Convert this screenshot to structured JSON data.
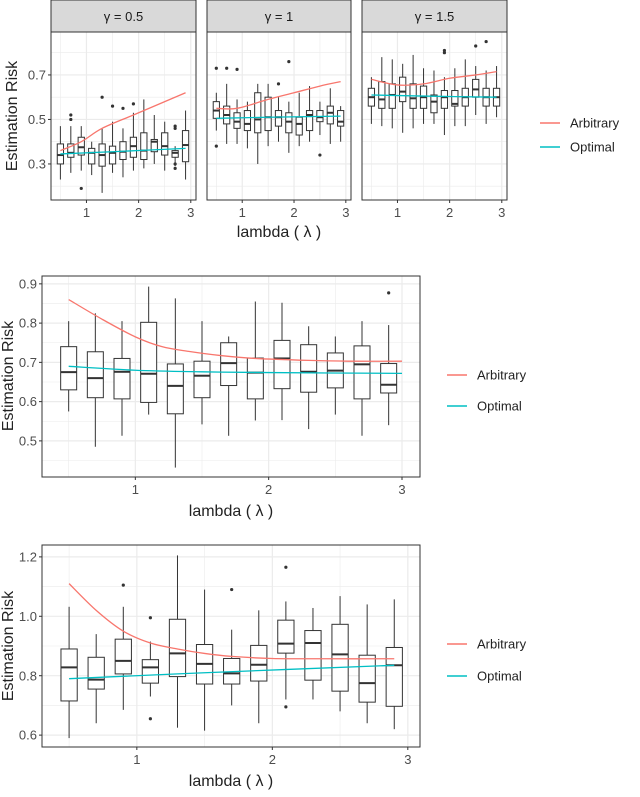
{
  "colors": {
    "arbitrary": "#F8766D",
    "optimal": "#00BFC4",
    "box": "#333333",
    "grid": "#EBEBEB",
    "strip": "#D9D9D9"
  },
  "chart_data": [
    {
      "type": "box",
      "xlabel": "lambda ( λ )",
      "ylabel": "Estimation Risk",
      "grid": true,
      "legend": {
        "placement": "right",
        "entries": [
          "Arbitrary",
          "Optimal"
        ]
      },
      "xlim": [
        0.32,
        3.1
      ],
      "ylim": [
        0.138,
        0.893
      ],
      "xticks": [
        "1",
        "2",
        "3"
      ],
      "yticks": [
        "0.3",
        "0.5",
        "0.7"
      ],
      "facets": [
        {
          "label": "γ = 0.5",
          "x": [
            0.5,
            0.7,
            0.9,
            1.1,
            1.3,
            1.5,
            1.7,
            1.9,
            2.1,
            2.3,
            2.5,
            2.7,
            2.9
          ],
          "boxes": [
            [
              0.23,
              0.3,
              0.34,
              0.39,
              0.47
            ],
            [
              0.26,
              0.33,
              0.35,
              0.39,
              0.47
            ],
            [
              0.27,
              0.34,
              0.375,
              0.42,
              0.47
            ],
            [
              0.25,
              0.3,
              0.35,
              0.37,
              0.4
            ],
            [
              0.17,
              0.29,
              0.34,
              0.39,
              0.46
            ],
            [
              0.26,
              0.3,
              0.35,
              0.38,
              0.49
            ],
            [
              0.24,
              0.32,
              0.355,
              0.4,
              0.46
            ],
            [
              0.27,
              0.33,
              0.38,
              0.42,
              0.53
            ],
            [
              0.28,
              0.32,
              0.36,
              0.44,
              0.59
            ],
            [
              0.3,
              0.355,
              0.4,
              0.41,
              0.52
            ],
            [
              0.27,
              0.34,
              0.38,
              0.44,
              0.49
            ],
            [
              0.29,
              0.33,
              0.35,
              0.36,
              0.38
            ],
            [
              0.23,
              0.31,
              0.385,
              0.45,
              0.54
            ]
          ],
          "outliers": [
            [],
            [
              0.5,
              0.52
            ],
            [
              0.19
            ],
            [],
            [
              0.6
            ],
            [
              0.56
            ],
            [
              0.55
            ],
            [
              0.57
            ],
            [],
            [],
            [],
            [
              0.46,
              0.47,
              0.28,
              0.3
            ],
            []
          ],
          "series": [
            {
              "name": "Arbitrary",
              "x": [
                0.5,
                0.9,
                1.3,
                1.9,
                2.4,
                2.9
              ],
              "y": [
                0.36,
                0.4,
                0.46,
                0.52,
                0.57,
                0.62
              ]
            },
            {
              "name": "Optimal",
              "x": [
                0.5,
                1.5,
                2.9
              ],
              "y": [
                0.345,
                0.355,
                0.37
              ]
            }
          ]
        },
        {
          "label": "γ = 1",
          "x": [
            0.5,
            0.7,
            0.9,
            1.1,
            1.3,
            1.5,
            1.7,
            1.9,
            2.1,
            2.3,
            2.5,
            2.7,
            2.9
          ],
          "boxes": [
            [
              0.45,
              0.505,
              0.54,
              0.58,
              0.62
            ],
            [
              0.39,
              0.48,
              0.52,
              0.56,
              0.66
            ],
            [
              0.39,
              0.46,
              0.49,
              0.53,
              0.59
            ],
            [
              0.37,
              0.45,
              0.48,
              0.54,
              0.58
            ],
            [
              0.3,
              0.44,
              0.5,
              0.62,
              0.66
            ],
            [
              0.38,
              0.45,
              0.51,
              0.6,
              0.66
            ],
            [
              0.4,
              0.47,
              0.51,
              0.54,
              0.6
            ],
            [
              0.35,
              0.44,
              0.49,
              0.53,
              0.58
            ],
            [
              0.38,
              0.43,
              0.48,
              0.51,
              0.62
            ],
            [
              0.4,
              0.45,
              0.52,
              0.54,
              0.65
            ],
            [
              0.43,
              0.49,
              0.51,
              0.54,
              0.58
            ],
            [
              0.39,
              0.48,
              0.53,
              0.56,
              0.64
            ],
            [
              0.4,
              0.47,
              0.49,
              0.54,
              0.56
            ]
          ],
          "outliers": [
            [
              0.73,
              0.38
            ],
            [
              0.73
            ],
            [
              0.725
            ],
            [],
            [],
            [],
            [
              0.66
            ],
            [
              0.76
            ],
            [],
            [],
            [
              0.34
            ],
            [],
            []
          ],
          "series": [
            {
              "name": "Arbitrary",
              "x": [
                0.5,
                0.9,
                1.5,
                2.0,
                2.5,
                2.9
              ],
              "y": [
                0.55,
                0.55,
                0.59,
                0.62,
                0.65,
                0.67
              ]
            },
            {
              "name": "Optimal",
              "x": [
                0.5,
                1.5,
                2.9
              ],
              "y": [
                0.505,
                0.51,
                0.515
              ]
            }
          ]
        },
        {
          "label": "γ = 1.5",
          "x": [
            0.5,
            0.7,
            0.9,
            1.1,
            1.3,
            1.5,
            1.7,
            1.9,
            2.1,
            2.3,
            2.5,
            2.7,
            2.9
          ],
          "boxes": [
            [
              0.48,
              0.56,
              0.6,
              0.64,
              0.69
            ],
            [
              0.47,
              0.55,
              0.59,
              0.67,
              0.78
            ],
            [
              0.46,
              0.55,
              0.61,
              0.66,
              0.77
            ],
            [
              0.44,
              0.58,
              0.625,
              0.69,
              0.75
            ],
            [
              0.46,
              0.55,
              0.595,
              0.66,
              0.79
            ],
            [
              0.48,
              0.55,
              0.6,
              0.65,
              0.73
            ],
            [
              0.48,
              0.53,
              0.58,
              0.61,
              0.72
            ],
            [
              0.43,
              0.55,
              0.6,
              0.63,
              0.69
            ],
            [
              0.47,
              0.56,
              0.57,
              0.63,
              0.73
            ],
            [
              0.47,
              0.56,
              0.6,
              0.64,
              0.77
            ],
            [
              0.52,
              0.6,
              0.635,
              0.68,
              0.74
            ],
            [
              0.48,
              0.56,
              0.6,
              0.64,
              0.72
            ],
            [
              0.51,
              0.56,
              0.6,
              0.64,
              0.74
            ]
          ],
          "outliers": [
            [],
            [],
            [],
            [],
            [],
            [],
            [],
            [
              0.8,
              0.81
            ],
            [],
            [],
            [
              0.83
            ],
            [
              0.85
            ],
            []
          ],
          "series": [
            {
              "name": "Arbitrary",
              "x": [
                0.5,
                1.0,
                1.5,
                2.0,
                2.5,
                2.9
              ],
              "y": [
                0.68,
                0.655,
                0.66,
                0.685,
                0.7,
                0.715
              ]
            },
            {
              "name": "Optimal",
              "x": [
                0.5,
                1.5,
                2.9
              ],
              "y": [
                0.61,
                0.605,
                0.6
              ]
            }
          ]
        }
      ]
    },
    {
      "type": "box",
      "xlabel": "lambda ( λ )",
      "ylabel": "Estimation Risk",
      "grid": true,
      "legend": {
        "placement": "right",
        "entries": [
          "Arbitrary",
          "Optimal"
        ]
      },
      "xlim": [
        0.3,
        3.135
      ],
      "ylim": [
        0.408,
        0.92
      ],
      "xticks": [
        "1",
        "2",
        "3"
      ],
      "yticks": [
        "0.5",
        "0.6",
        "0.7",
        "0.8",
        "0.9"
      ],
      "x": [
        0.5,
        0.7,
        0.9,
        1.1,
        1.3,
        1.5,
        1.7,
        1.9,
        2.1,
        2.3,
        2.5,
        2.7,
        2.9
      ],
      "boxes": [
        [
          0.575,
          0.63,
          0.675,
          0.74,
          0.805
        ],
        [
          0.485,
          0.61,
          0.66,
          0.727,
          0.825
        ],
        [
          0.513,
          0.607,
          0.676,
          0.71,
          0.805
        ],
        [
          0.567,
          0.598,
          0.671,
          0.802,
          0.893
        ],
        [
          0.432,
          0.569,
          0.64,
          0.696,
          0.863
        ],
        [
          0.542,
          0.61,
          0.666,
          0.703,
          0.805
        ],
        [
          0.513,
          0.641,
          0.698,
          0.75,
          0.766
        ],
        [
          0.552,
          0.607,
          0.674,
          0.711,
          0.855
        ],
        [
          0.553,
          0.633,
          0.71,
          0.756,
          0.852
        ],
        [
          0.53,
          0.624,
          0.676,
          0.745,
          0.792
        ],
        [
          0.567,
          0.635,
          0.679,
          0.724,
          0.766
        ],
        [
          0.513,
          0.607,
          0.695,
          0.742,
          0.805
        ],
        [
          0.54,
          0.622,
          0.643,
          0.697,
          0.795
        ]
      ],
      "outliers": [
        [],
        [],
        [],
        [],
        [],
        [],
        [],
        [],
        [],
        [],
        [],
        [],
        [
          0.877
        ]
      ],
      "series": [
        {
          "name": "Arbitrary",
          "x": [
            0.5,
            0.75,
            1.0,
            1.2,
            1.4,
            1.65,
            1.9,
            2.3,
            2.6,
            3.0
          ],
          "y": [
            0.86,
            0.81,
            0.765,
            0.74,
            0.728,
            0.717,
            0.71,
            0.705,
            0.703,
            0.703
          ]
        },
        {
          "name": "Optimal",
          "x": [
            0.5,
            1.0,
            1.5,
            2.0,
            3.0
          ],
          "y": [
            0.69,
            0.68,
            0.676,
            0.674,
            0.672
          ]
        }
      ]
    },
    {
      "type": "box",
      "xlabel": "lambda ( λ )",
      "ylabel": "Estimation Risk",
      "grid": true,
      "legend": {
        "placement": "right",
        "entries": [
          "Arbitrary",
          "Optimal"
        ]
      },
      "xlim": [
        0.3,
        3.09
      ],
      "ylim": [
        0.56,
        1.24
      ],
      "xticks": [
        "1",
        "2",
        "3"
      ],
      "yticks": [
        "0.6",
        "0.8",
        "1.0",
        "1.2"
      ],
      "x": [
        0.5,
        0.7,
        0.9,
        1.1,
        1.3,
        1.5,
        1.7,
        1.9,
        2.1,
        2.3,
        2.5,
        2.7,
        2.9
      ],
      "boxes": [
        [
          0.59,
          0.715,
          0.828,
          0.89,
          1.032
        ],
        [
          0.64,
          0.755,
          0.787,
          0.862,
          0.94
        ],
        [
          0.685,
          0.806,
          0.85,
          0.923,
          1.032
        ],
        [
          0.73,
          0.775,
          0.828,
          0.854,
          0.915
        ],
        [
          0.625,
          0.797,
          0.875,
          0.99,
          1.205
        ],
        [
          0.615,
          0.772,
          0.84,
          0.905,
          1.09
        ],
        [
          0.7,
          0.772,
          0.808,
          0.858,
          0.955
        ],
        [
          0.64,
          0.782,
          0.837,
          0.902,
          1.02
        ],
        [
          0.72,
          0.876,
          0.908,
          0.987,
          1.05
        ],
        [
          0.72,
          0.785,
          0.91,
          0.952,
          1.028
        ],
        [
          0.68,
          0.748,
          0.872,
          0.973,
          1.068
        ],
        [
          0.64,
          0.711,
          0.775,
          0.869,
          1.04
        ],
        [
          0.62,
          0.697,
          0.835,
          0.895,
          1.057
        ]
      ],
      "outliers": [
        [],
        [],
        [
          1.105
        ],
        [
          0.995,
          0.655
        ],
        [],
        [],
        [
          1.09
        ],
        [],
        [
          1.165,
          0.695
        ],
        [],
        [],
        [],
        []
      ],
      "series": [
        {
          "name": "Arbitrary",
          "x": [
            0.5,
            0.7,
            0.9,
            1.1,
            1.3,
            1.5,
            1.7,
            2.0,
            2.4,
            2.9
          ],
          "y": [
            1.11,
            1.02,
            0.95,
            0.91,
            0.89,
            0.875,
            0.865,
            0.858,
            0.857,
            0.857
          ]
        },
        {
          "name": "Optimal",
          "x": [
            0.5,
            1.5,
            2.9
          ],
          "y": [
            0.79,
            0.81,
            0.835
          ]
        }
      ]
    }
  ]
}
